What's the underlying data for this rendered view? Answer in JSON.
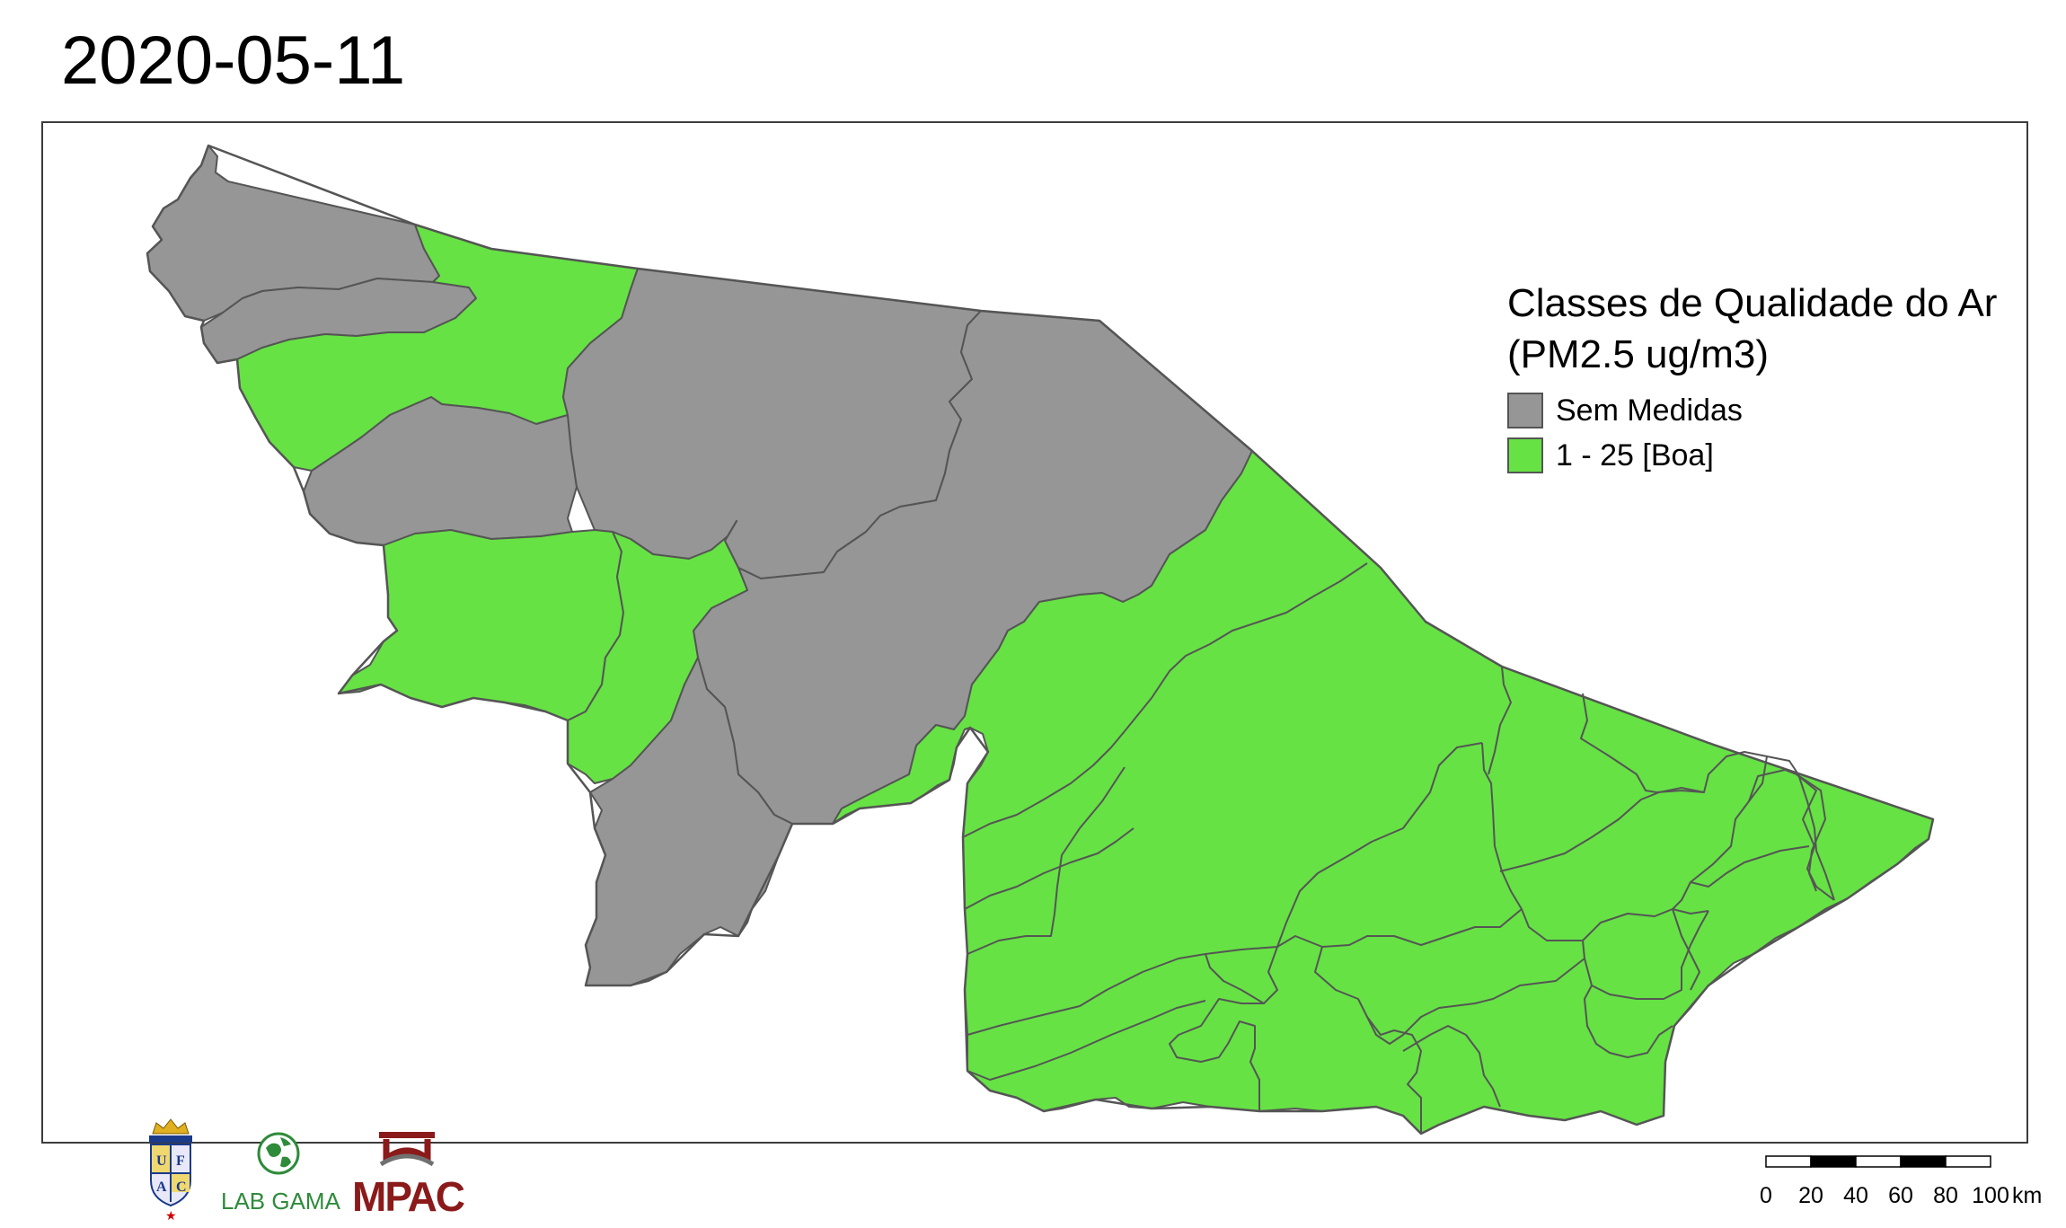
{
  "title": "2020-05-11",
  "legend": {
    "title_line1": "Classes de Qualidade do Ar",
    "title_line2": "(PM2.5 ug/m3)",
    "items": [
      {
        "label": "Sem Medidas",
        "color": "#969696"
      },
      {
        "label": "1 - 25 [Boa]",
        "color": "#66e244"
      }
    ]
  },
  "colors": {
    "no_data": "#969696",
    "good": "#66e244",
    "border": "#555555"
  },
  "logos": {
    "ufac_letters": [
      "U",
      "F",
      "A",
      "C"
    ],
    "lab_gama": "LAB GAMA",
    "mpac": "MPAC"
  },
  "scalebar": {
    "ticks": [
      "0",
      "20",
      "40",
      "60",
      "80",
      "100"
    ],
    "unit": "km"
  }
}
